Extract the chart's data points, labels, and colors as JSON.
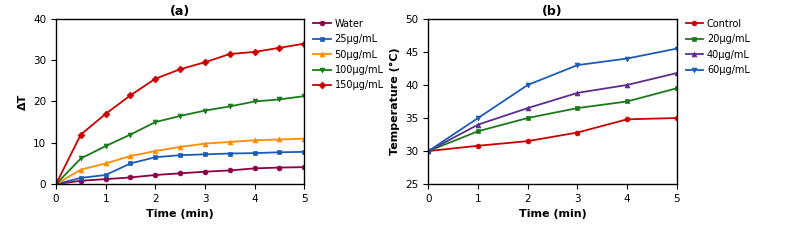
{
  "panel_a": {
    "title": "(a)",
    "xlabel": "Time (min)",
    "ylabel": "ΔT",
    "xlim": [
      0,
      5
    ],
    "ylim": [
      0,
      40
    ],
    "xticks": [
      0,
      1,
      2,
      3,
      4,
      5
    ],
    "yticks": [
      0,
      10,
      20,
      30,
      40
    ],
    "series": [
      {
        "label": "Water",
        "color": "#8B0046",
        "marker": "o",
        "x": [
          0,
          0.5,
          1.0,
          1.5,
          2.0,
          2.5,
          3.0,
          3.5,
          4.0,
          4.5,
          5.0
        ],
        "y": [
          0,
          0.8,
          1.2,
          1.6,
          2.2,
          2.6,
          3.0,
          3.3,
          3.8,
          4.0,
          4.1
        ]
      },
      {
        "label": "25μg/mL",
        "color": "#1A5CB8",
        "marker": "s",
        "x": [
          0,
          0.5,
          1.0,
          1.5,
          2.0,
          2.5,
          3.0,
          3.5,
          4.0,
          4.5,
          5.0
        ],
        "y": [
          0,
          1.5,
          2.2,
          5.0,
          6.5,
          7.0,
          7.2,
          7.4,
          7.5,
          7.7,
          7.8
        ]
      },
      {
        "label": "50μg/mL",
        "color": "#FF8C00",
        "marker": "^",
        "x": [
          0,
          0.5,
          1.0,
          1.5,
          2.0,
          2.5,
          3.0,
          3.5,
          4.0,
          4.5,
          5.0
        ],
        "y": [
          0,
          3.5,
          5.0,
          6.8,
          8.0,
          9.0,
          9.8,
          10.2,
          10.6,
          10.8,
          11.0
        ]
      },
      {
        "label": "100μg/mL",
        "color": "#1A7A1A",
        "marker": "v",
        "x": [
          0,
          0.5,
          1.0,
          1.5,
          2.0,
          2.5,
          3.0,
          3.5,
          4.0,
          4.5,
          5.0
        ],
        "y": [
          0,
          6.2,
          9.2,
          12.0,
          15.0,
          16.5,
          17.8,
          18.8,
          20.0,
          20.5,
          21.3
        ]
      },
      {
        "label": "150μg/mL",
        "color": "#CC0000",
        "marker": "D",
        "x": [
          0,
          0.5,
          1.0,
          1.5,
          2.0,
          2.5,
          3.0,
          3.5,
          4.0,
          4.5,
          5.0
        ],
        "y": [
          0,
          12.0,
          17.0,
          21.5,
          25.5,
          27.8,
          29.5,
          31.5,
          32.0,
          33.0,
          34.0
        ]
      }
    ]
  },
  "panel_b": {
    "title": "(b)",
    "xlabel": "Time (min)",
    "ylabel": "Temperature (°C)",
    "xlim": [
      0,
      5
    ],
    "ylim": [
      25,
      50
    ],
    "xticks": [
      0,
      1,
      2,
      3,
      4,
      5
    ],
    "yticks": [
      25,
      30,
      35,
      40,
      45,
      50
    ],
    "series": [
      {
        "label": "Control",
        "color": "#CC0000",
        "marker": "o",
        "x": [
          0,
          1,
          2,
          3,
          4,
          5
        ],
        "y": [
          30.0,
          30.8,
          31.5,
          32.8,
          34.8,
          35.0
        ]
      },
      {
        "label": "20μg/mL",
        "color": "#1A7A1A",
        "marker": "s",
        "x": [
          0,
          1,
          2,
          3,
          4,
          5
        ],
        "y": [
          30.0,
          33.0,
          35.0,
          36.5,
          37.5,
          39.5
        ]
      },
      {
        "label": "40μg/mL",
        "color": "#5B2D8E",
        "marker": "^",
        "x": [
          0,
          1,
          2,
          3,
          4,
          5
        ],
        "y": [
          30.0,
          34.0,
          36.5,
          38.8,
          40.0,
          41.8
        ]
      },
      {
        "label": "60μg/mL",
        "color": "#1A5CB8",
        "marker": "v",
        "x": [
          0,
          1,
          2,
          3,
          4,
          5
        ],
        "y": [
          30.0,
          35.0,
          40.0,
          43.0,
          44.0,
          45.5
        ]
      }
    ]
  },
  "figsize": [
    8.0,
    2.36
  ],
  "dpi": 100
}
